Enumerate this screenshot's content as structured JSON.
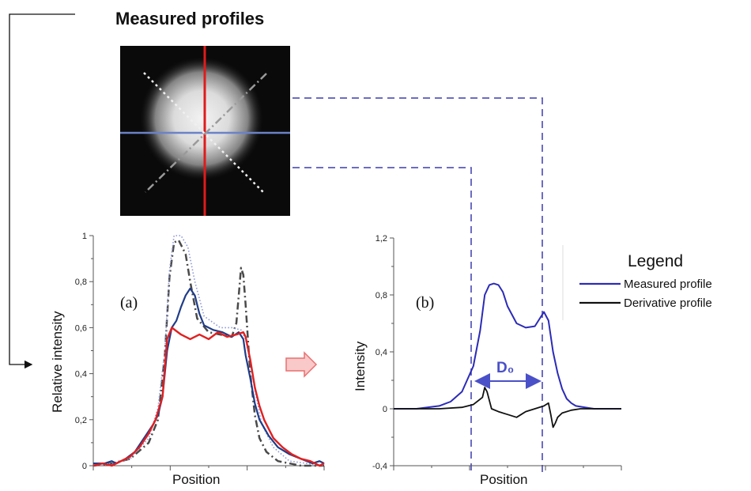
{
  "title": "Measured profiles",
  "colors": {
    "measured": "#2b2bb8",
    "derivative": "#111111",
    "red_profile": "#e02020",
    "blue_profile": "#1f3c88",
    "dashdot_profile": "#4a4a4a",
    "dotted_profile": "#8a96d8",
    "connector": "#3b3bb0",
    "arrow": "#e87070"
  },
  "image_icon": "beam-spot-camera-image",
  "chart_data": [
    {
      "type": "line",
      "panel_label": "(a)",
      "xlabel": "Position",
      "ylabel": "Relative intensity",
      "ylim": [
        0,
        1
      ],
      "yticks": [
        "0",
        "0,2",
        "0,4",
        "0,6",
        "0,8",
        "1"
      ],
      "xlim": [
        0,
        100
      ],
      "grid": false,
      "series": [
        {
          "style": "dashdot",
          "x": [
            0,
            8,
            16,
            24,
            28,
            31,
            33,
            35,
            37,
            40,
            42,
            45,
            50,
            55,
            60,
            62,
            63,
            64,
            65,
            66,
            67,
            68,
            70,
            72,
            75,
            80,
            90,
            100
          ],
          "y": [
            0.0,
            0.01,
            0.03,
            0.1,
            0.2,
            0.48,
            0.82,
            0.97,
            0.98,
            0.92,
            0.8,
            0.64,
            0.58,
            0.57,
            0.56,
            0.62,
            0.74,
            0.86,
            0.83,
            0.7,
            0.55,
            0.4,
            0.22,
            0.12,
            0.06,
            0.02,
            0.0,
            0.0
          ]
        },
        {
          "style": "dotted",
          "x": [
            0,
            8,
            16,
            24,
            28,
            31,
            33,
            35,
            38,
            41,
            44,
            48,
            55,
            60,
            64,
            66,
            68,
            70,
            73,
            78,
            85,
            100
          ],
          "y": [
            0.0,
            0.01,
            0.03,
            0.12,
            0.25,
            0.5,
            0.85,
            1.0,
            1.0,
            0.95,
            0.8,
            0.65,
            0.6,
            0.6,
            0.59,
            0.55,
            0.45,
            0.33,
            0.18,
            0.08,
            0.02,
            0.0
          ]
        },
        {
          "style": "blue",
          "x": [
            0,
            5,
            8,
            10,
            14,
            18,
            22,
            26,
            28,
            30,
            32,
            34,
            36,
            38,
            40,
            42,
            44,
            46,
            48,
            52,
            56,
            60,
            63,
            65,
            66,
            68,
            70,
            72,
            76,
            80,
            85,
            90,
            95,
            98,
            100
          ],
          "y": [
            0.01,
            0.01,
            0.02,
            0.01,
            0.03,
            0.06,
            0.12,
            0.18,
            0.22,
            0.3,
            0.5,
            0.6,
            0.63,
            0.69,
            0.74,
            0.77,
            0.74,
            0.66,
            0.61,
            0.59,
            0.58,
            0.56,
            0.58,
            0.55,
            0.48,
            0.38,
            0.27,
            0.2,
            0.13,
            0.08,
            0.05,
            0.03,
            0.01,
            0.02,
            0.01
          ]
        },
        {
          "style": "red",
          "x": [
            0,
            4,
            8,
            12,
            16,
            20,
            24,
            27,
            30,
            32,
            34,
            38,
            42,
            46,
            50,
            54,
            58,
            62,
            65,
            66,
            68,
            70,
            72,
            74,
            76,
            78,
            82,
            86,
            90,
            94,
            98,
            100
          ],
          "y": [
            0.0,
            0.01,
            0.0,
            0.02,
            0.04,
            0.08,
            0.14,
            0.2,
            0.3,
            0.55,
            0.6,
            0.57,
            0.55,
            0.57,
            0.55,
            0.58,
            0.56,
            0.57,
            0.58,
            0.56,
            0.46,
            0.34,
            0.26,
            0.2,
            0.16,
            0.12,
            0.08,
            0.05,
            0.03,
            0.02,
            0.0,
            0.01
          ]
        }
      ]
    },
    {
      "type": "line",
      "panel_label": "(b)",
      "xlabel": "Position",
      "ylabel": "Intensity",
      "ylim": [
        -0.4,
        1.2
      ],
      "yticks": [
        "-0,4",
        "0",
        "0,4",
        "0,8",
        "1,2"
      ],
      "xlim": [
        0,
        100
      ],
      "grid": false,
      "legend": {
        "title": "Legend",
        "placement": "right",
        "items": [
          "Measured profile",
          "Derivative profile"
        ]
      },
      "annotation": "D₀",
      "series": [
        {
          "name": "Measured profile",
          "x": [
            0,
            10,
            20,
            25,
            30,
            35,
            38,
            40,
            42,
            44,
            46,
            48,
            50,
            54,
            58,
            62,
            64,
            66,
            68,
            70,
            72,
            74,
            76,
            78,
            80,
            84,
            88,
            94,
            100
          ],
          "y": [
            0,
            0.0,
            0.02,
            0.05,
            0.12,
            0.3,
            0.55,
            0.8,
            0.87,
            0.88,
            0.87,
            0.82,
            0.72,
            0.6,
            0.57,
            0.58,
            0.63,
            0.68,
            0.62,
            0.4,
            0.25,
            0.14,
            0.07,
            0.04,
            0.02,
            0.01,
            0.0,
            0.0,
            0.0
          ]
        },
        {
          "name": "Derivative profile",
          "x": [
            0,
            20,
            30,
            35,
            39,
            40,
            41,
            43,
            46,
            50,
            54,
            56,
            58,
            62,
            66,
            68,
            69,
            70,
            71,
            72,
            74,
            78,
            82,
            90,
            100
          ],
          "y": [
            0,
            0.0,
            0.01,
            0.03,
            0.08,
            0.15,
            0.12,
            0.0,
            -0.02,
            -0.04,
            -0.06,
            -0.04,
            -0.02,
            0.0,
            0.02,
            0.04,
            -0.04,
            -0.13,
            -0.1,
            -0.06,
            -0.03,
            -0.01,
            0.0,
            0.0,
            0.0
          ]
        }
      ]
    }
  ]
}
